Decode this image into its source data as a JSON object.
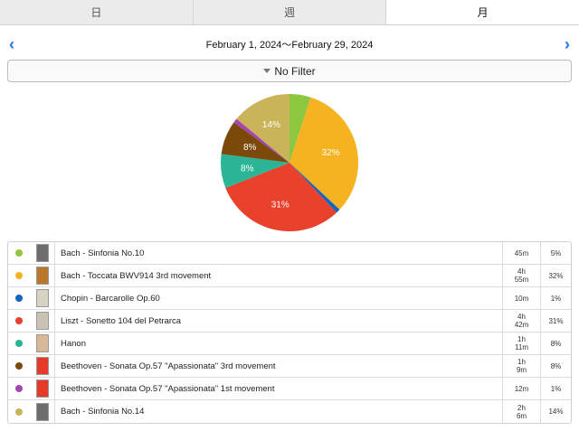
{
  "tabs": [
    {
      "label": "日",
      "active": false
    },
    {
      "label": "週",
      "active": false
    },
    {
      "label": "月",
      "active": true
    }
  ],
  "date_range": "February 1, 2024～February 29, 2024",
  "prev_icon": "chevron-left-icon",
  "next_icon": "chevron-right-icon",
  "filter_label": "No Filter",
  "chart_data": {
    "type": "pie",
    "slices": [
      {
        "label": "Bach - Sinfonia No.10",
        "value": 5,
        "color": "#8dc63f",
        "text": ""
      },
      {
        "label": "Bach - Toccata BWV914 3rd movement",
        "value": 32,
        "color": "#f5b321",
        "text": "32%"
      },
      {
        "label": "Chopin - Barcarolle Op.60",
        "value": 1,
        "color": "#1565c0",
        "text": ""
      },
      {
        "label": "Liszt - Sonetto 104 del Petrarca",
        "value": 31,
        "color": "#e8412c",
        "text": "31%"
      },
      {
        "label": "Hanon",
        "value": 8,
        "color": "#2bb596",
        "text": "8%"
      },
      {
        "label": "Beethoven - Sonata Op.57 \"Apassionata\" 3rd movement",
        "value": 8,
        "color": "#7b4a0b",
        "text": "8%"
      },
      {
        "label": "Beethoven - Sonata Op.57 \"Apassionata\" 1st movement",
        "value": 1,
        "color": "#a445b2",
        "text": ""
      },
      {
        "label": "Bach - Sinfonia No.14",
        "value": 14,
        "color": "#c9b45a",
        "text": "14%"
      }
    ]
  },
  "rows": [
    {
      "color": "#8dc63f",
      "thumb": "#6d6d6d",
      "title": "Bach - Sinfonia No.10",
      "time": "45m",
      "pct": "5%"
    },
    {
      "color": "#f5b321",
      "thumb": "#b8772a",
      "title": "Bach - Toccata BWV914 3rd movement",
      "time": "4h\n55m",
      "pct": "32%"
    },
    {
      "color": "#1565c0",
      "thumb": "#d8d2c4",
      "title": "Chopin - Barcarolle Op.60",
      "time": "10m",
      "pct": "1%"
    },
    {
      "color": "#e8412c",
      "thumb": "#c9c2b5",
      "title": "Liszt - Sonetto 104 del Petrarca",
      "time": "4h\n42m",
      "pct": "31%"
    },
    {
      "color": "#2bb596",
      "thumb": "#d9b89a",
      "title": "Hanon",
      "time": "1h\n11m",
      "pct": "8%"
    },
    {
      "color": "#7b4a0b",
      "thumb": "#e53a2a",
      "title": "Beethoven - Sonata Op.57 \"Apassionata\" 3rd movement",
      "time": "1h\n9m",
      "pct": "8%"
    },
    {
      "color": "#a445b2",
      "thumb": "#e53a2a",
      "title": "Beethoven - Sonata Op.57 \"Apassionata\" 1st movement",
      "time": "12m",
      "pct": "1%"
    },
    {
      "color": "#c9b45a",
      "thumb": "#6d6d6d",
      "title": "Bach - Sinfonia No.14",
      "time": "2h\n6m",
      "pct": "14%"
    }
  ]
}
